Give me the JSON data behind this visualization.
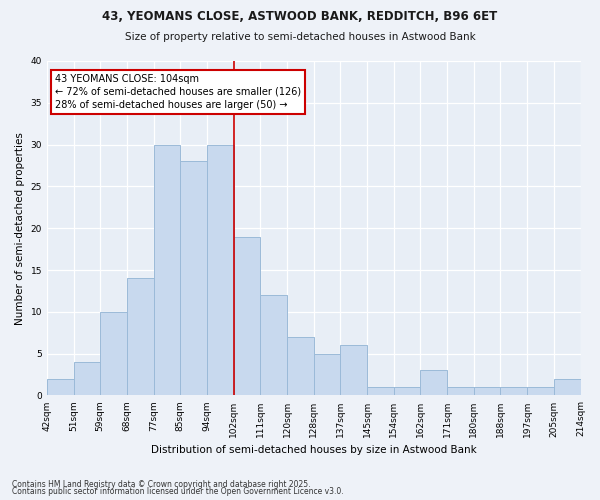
{
  "title": "43, YEOMANS CLOSE, ASTWOOD BANK, REDDITCH, B96 6ET",
  "subtitle": "Size of property relative to semi-detached houses in Astwood Bank",
  "xlabel": "Distribution of semi-detached houses by size in Astwood Bank",
  "ylabel": "Number of semi-detached properties",
  "footnote1": "Contains HM Land Registry data © Crown copyright and database right 2025.",
  "footnote2": "Contains public sector information licensed under the Open Government Licence v3.0.",
  "bar_color": "#c8d9ee",
  "bar_edge_color": "#9bbad8",
  "property_line_color": "#cc0000",
  "annotation_box_color": "#cc0000",
  "annotation_text": "43 YEOMANS CLOSE: 104sqm",
  "annotation_line1": "← 72% of semi-detached houses are smaller (126)",
  "annotation_line2": "28% of semi-detached houses are larger (50) →",
  "bin_labels": [
    "42sqm",
    "51sqm",
    "59sqm",
    "68sqm",
    "77sqm",
    "85sqm",
    "94sqm",
    "102sqm",
    "111sqm",
    "120sqm",
    "128sqm",
    "137sqm",
    "145sqm",
    "154sqm",
    "162sqm",
    "171sqm",
    "180sqm",
    "188sqm",
    "197sqm",
    "205sqm",
    "214sqm"
  ],
  "counts": [
    2,
    4,
    10,
    14,
    30,
    28,
    30,
    19,
    12,
    7,
    5,
    6,
    1,
    1,
    3,
    1,
    1,
    1,
    1,
    2
  ],
  "property_line_x": 7.0,
  "ylim": [
    0,
    40
  ],
  "yticks": [
    0,
    5,
    10,
    15,
    20,
    25,
    30,
    35,
    40
  ],
  "background_color": "#eef2f8",
  "plot_bg_color": "#e8eef6",
  "title_fontsize": 8.5,
  "subtitle_fontsize": 7.5,
  "annotation_fontsize": 7,
  "axis_label_fontsize": 7.5,
  "tick_fontsize": 6.5
}
